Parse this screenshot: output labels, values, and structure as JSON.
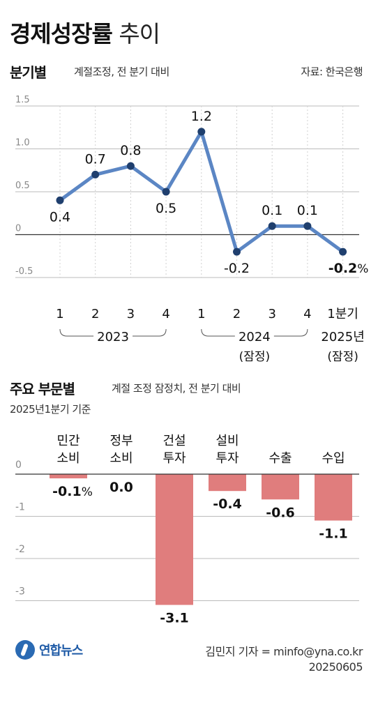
{
  "title": {
    "bold": "경제성장률",
    "light": "추이"
  },
  "line_section": {
    "heading": "분기별",
    "note": "계절조정, 전 분기 대비",
    "source": "자료: 한국은행"
  },
  "bar_section": {
    "heading": "주요 부문별",
    "note": "계절 조정 잠정치, 전 분기 대비",
    "subnote": "2025년1분기 기준"
  },
  "footer": {
    "logo_text": "연합뉴스",
    "credit": "김민지 기자 = minfo@yna.co.kr",
    "date": "20250605"
  },
  "colors": {
    "line": "#5b86c4",
    "point": "#1f3f6e",
    "bar": "#e07d7d",
    "grid": "#bbbbbb",
    "axis": "#333333"
  },
  "chart_data": [
    {
      "type": "line",
      "title": "분기별",
      "x": [
        "2023-Q1",
        "2023-Q2",
        "2023-Q3",
        "2023-Q4",
        "2024-Q1",
        "2024-Q2",
        "2024-Q3",
        "2024-Q4",
        "2025-Q1"
      ],
      "tick_labels": [
        "1",
        "2",
        "3",
        "4",
        "1",
        "2",
        "3",
        "4",
        "1분기"
      ],
      "year_groups": [
        {
          "label": "2023",
          "sub": ""
        },
        {
          "label": "2024",
          "sub": "(잠정)"
        },
        {
          "label": "2025년",
          "sub": "(잠정)"
        }
      ],
      "values": [
        0.4,
        0.7,
        0.8,
        0.5,
        1.2,
        -0.2,
        0.1,
        0.1,
        -0.2
      ],
      "value_labels": [
        "0.4",
        "0.7",
        "0.8",
        "0.5",
        "1.2",
        "-0.2",
        "0.1",
        "0.1",
        "-0.2"
      ],
      "last_label_unit": "%",
      "yticks": [
        1.5,
        1.0,
        0.5,
        0,
        -0.5
      ],
      "ytick_labels": [
        "1.5",
        "1.0",
        "0.5",
        "0",
        "-0.5"
      ],
      "ylim": [
        -0.5,
        1.5
      ],
      "grid": true
    },
    {
      "type": "bar",
      "title": "주요 부문별",
      "categories": [
        [
          "민간",
          "소비"
        ],
        [
          "정부",
          "소비"
        ],
        [
          "건설",
          "투자"
        ],
        [
          "설비",
          "투자"
        ],
        [
          "수출"
        ],
        [
          "수입"
        ]
      ],
      "values": [
        -0.1,
        0.0,
        -3.1,
        -0.4,
        -0.6,
        -1.1
      ],
      "value_labels": [
        "-0.1",
        "0.0",
        "-3.1",
        "-0.4",
        "-0.6",
        "-1.1"
      ],
      "first_label_unit": "%",
      "yticks": [
        0,
        -1,
        -2,
        -3
      ],
      "ytick_labels": [
        "0",
        "-1",
        "-2",
        "-3"
      ],
      "ylim": [
        -3.3,
        0
      ],
      "grid": true
    }
  ]
}
